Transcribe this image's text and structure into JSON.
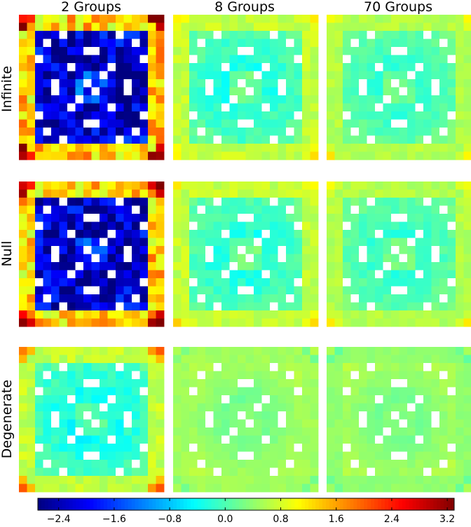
{
  "chart_data": {
    "type": "heatmap",
    "title": "",
    "column_titles": [
      "2 Groups",
      "8 Groups",
      "70 Groups"
    ],
    "row_labels": [
      "Infinite",
      "Null",
      "Degenerate"
    ],
    "grid_size": [
      18,
      18
    ],
    "colormap": "jet",
    "clim": [
      -2.7,
      3.3
    ],
    "colorbar": {
      "orientation": "horizontal",
      "placement": "bottom",
      "ticks": [
        -2.4,
        -1.6,
        -0.8,
        0.0,
        0.8,
        1.6,
        2.4,
        3.2
      ],
      "tick_labels": [
        "−2.4",
        "−1.6",
        "−0.8",
        "0.0",
        "0.8",
        "1.6",
        "2.4",
        "3.2"
      ]
    },
    "masked_cells_color": "#ffffff",
    "panels": [
      {
        "row": "Infinite",
        "column": "2 Groups",
        "corner_value": 3.1,
        "ring_value": 1.3,
        "center_value": -1.6,
        "blue_cells": -2.5
      },
      {
        "row": "Infinite",
        "column": "8 Groups",
        "corner_value": 1.2,
        "ring_value": 0.7,
        "center_value": 0.2,
        "blue_cells": -0.3
      },
      {
        "row": "Infinite",
        "column": "70 Groups",
        "corner_value": 1.1,
        "ring_value": 0.6,
        "center_value": 0.2,
        "blue_cells": -0.2
      },
      {
        "row": "Null",
        "column": "2 Groups",
        "corner_value": 3.1,
        "ring_value": 1.3,
        "center_value": -1.6,
        "blue_cells": -2.5
      },
      {
        "row": "Null",
        "column": "8 Groups",
        "corner_value": 1.2,
        "ring_value": 0.7,
        "center_value": 0.2,
        "blue_cells": -0.3
      },
      {
        "row": "Null",
        "column": "70 Groups",
        "corner_value": 1.1,
        "ring_value": 0.6,
        "center_value": 0.2,
        "blue_cells": -0.2
      },
      {
        "row": "Degenerate",
        "column": "2 Groups",
        "corner_value": 1.9,
        "ring_value": 0.7,
        "center_value": 0.0,
        "blue_cells": -0.4
      },
      {
        "row": "Degenerate",
        "column": "8 Groups",
        "corner_value": 0.6,
        "ring_value": 0.5,
        "center_value": 0.3,
        "blue_cells": 0.2
      },
      {
        "row": "Degenerate",
        "column": "70 Groups",
        "corner_value": 0.5,
        "ring_value": 0.4,
        "center_value": 0.3,
        "blue_cells": 0.2
      }
    ]
  }
}
